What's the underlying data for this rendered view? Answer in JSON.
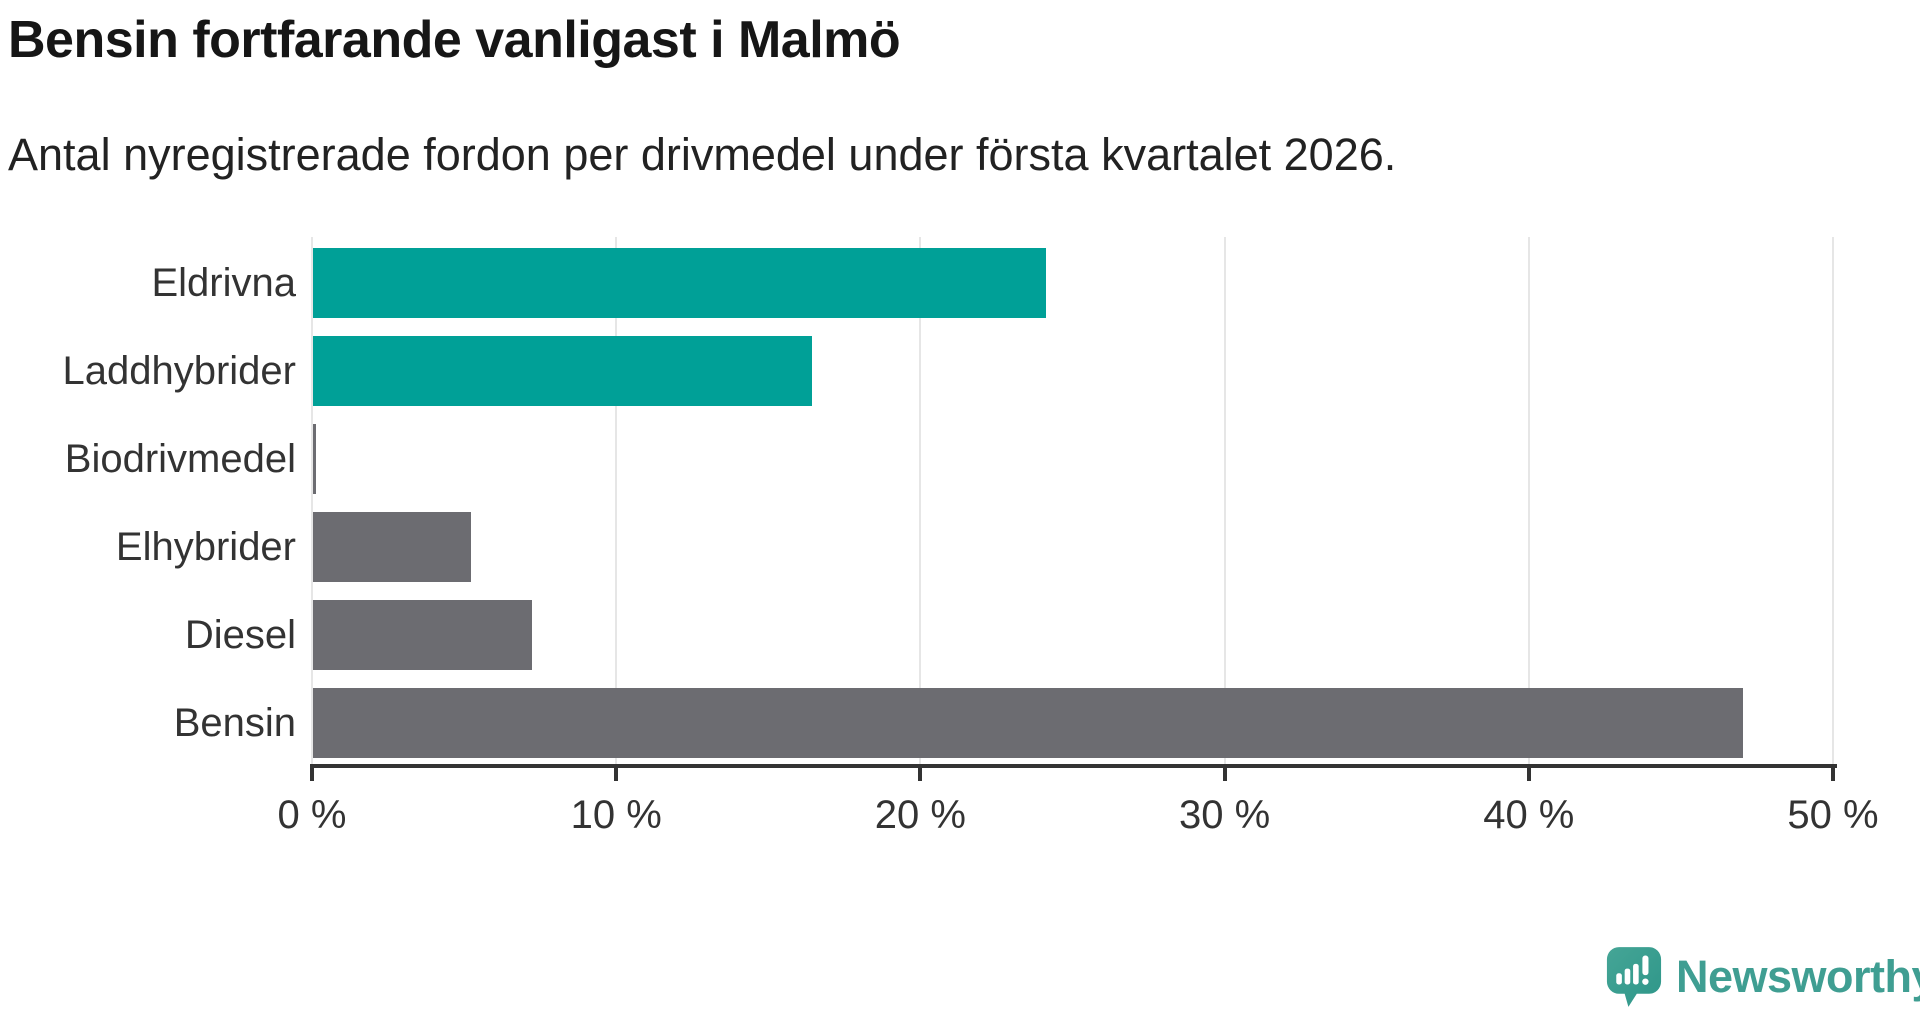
{
  "header": {
    "title": "Bensin fortfarande vanligast i Malmö",
    "subtitle": "Antal nyregistrerade fordon per drivmedel under första kvartalet 2026."
  },
  "chart_data": {
    "type": "bar",
    "orientation": "horizontal",
    "title": "Bensin fortfarande vanligast i Malmö",
    "subtitle": "Antal nyregistrerade fordon per drivmedel under första kvartalet 2026.",
    "categories": [
      "Eldrivna",
      "Laddhybrider",
      "Biodrivmedel",
      "Elhybrider",
      "Diesel",
      "Bensin"
    ],
    "values": [
      24.1,
      16.4,
      0.1,
      5.2,
      7.2,
      47.0
    ],
    "value_unit": "%",
    "xlim": [
      0,
      50
    ],
    "xticks": [
      0,
      10,
      20,
      30,
      40,
      50
    ],
    "xtick_labels": [
      "0 %",
      "10 %",
      "20 %",
      "30 %",
      "40 %",
      "50 %"
    ],
    "grid": true,
    "legend": false,
    "bar_colors": [
      "#00a097",
      "#00a097",
      "#6c6c71",
      "#6c6c71",
      "#6c6c71",
      "#6c6c71"
    ],
    "highlight_color": "#00a097",
    "base_color": "#6c6c71"
  },
  "branding": {
    "logo_text": "Newsworthy",
    "logo_color": "#3f9e92",
    "logo_icon": "speech-bubble-bar-chart-exclamation"
  },
  "colors": {
    "background": "#ffffff",
    "title_text": "#161616",
    "subtitle_text": "#222222",
    "label_text": "#333333",
    "axis": "#333333",
    "gridline": "#e6e6e6"
  }
}
